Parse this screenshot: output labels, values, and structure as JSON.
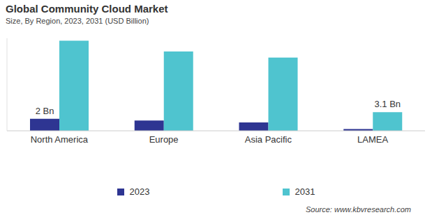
{
  "chart_data": {
    "type": "bar",
    "title": "Global Community Cloud Market",
    "subtitle": "Size, By Region, 2023, 2031 (USD Billion)",
    "source": "Source: www.kbvresearch.com",
    "categories": [
      "North America",
      "Europe",
      "Asia Pacific",
      "LAMEA"
    ],
    "series": [
      {
        "name": "2023",
        "color": "#2e3592",
        "values": [
          2,
          1.7,
          1.4,
          0.3
        ],
        "value_labels": [
          "2 Bn",
          null,
          null,
          null
        ]
      },
      {
        "name": "2031",
        "color": "#4fc4cf",
        "values": [
          15,
          13.2,
          12.2,
          3.1
        ],
        "value_labels": [
          null,
          null,
          null,
          "3.1 Bn"
        ]
      }
    ],
    "ylim": [
      0,
      15.4
    ],
    "yticks": [],
    "tick_labels": "x",
    "data_labels": true,
    "grid": false,
    "legend": "bottom"
  }
}
